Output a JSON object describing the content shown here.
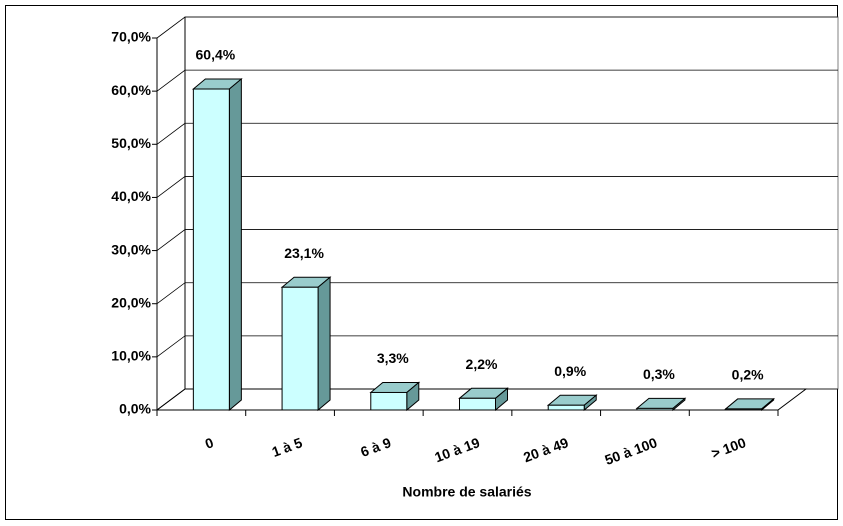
{
  "chart_data": {
    "type": "bar3d",
    "x_label": "Nombre de salariés",
    "categories": [
      "0",
      "1 à 5",
      "6 à 9",
      "10 à 19",
      "20 à 49",
      "50 à 100",
      "> 100"
    ],
    "values": [
      60.4,
      23.1,
      3.3,
      2.2,
      0.9,
      0.3,
      0.2
    ],
    "value_labels": [
      "60,4%",
      "23,1%",
      "3,3%",
      "2,2%",
      "0,9%",
      "0,3%",
      "0,2%"
    ],
    "color": "#ccffff",
    "ylim": [
      0,
      70
    ],
    "yticks": [
      {
        "value": 0,
        "label": "0,0%"
      },
      {
        "value": 10,
        "label": "10,0%"
      },
      {
        "value": 20,
        "label": "20,0%"
      },
      {
        "value": 30,
        "label": "30,0%"
      },
      {
        "value": 40,
        "label": "40,0%"
      },
      {
        "value": 50,
        "label": "50,0%"
      },
      {
        "value": 60,
        "label": "60,0%"
      },
      {
        "value": 70,
        "label": "70,0%"
      }
    ],
    "grid": true
  }
}
